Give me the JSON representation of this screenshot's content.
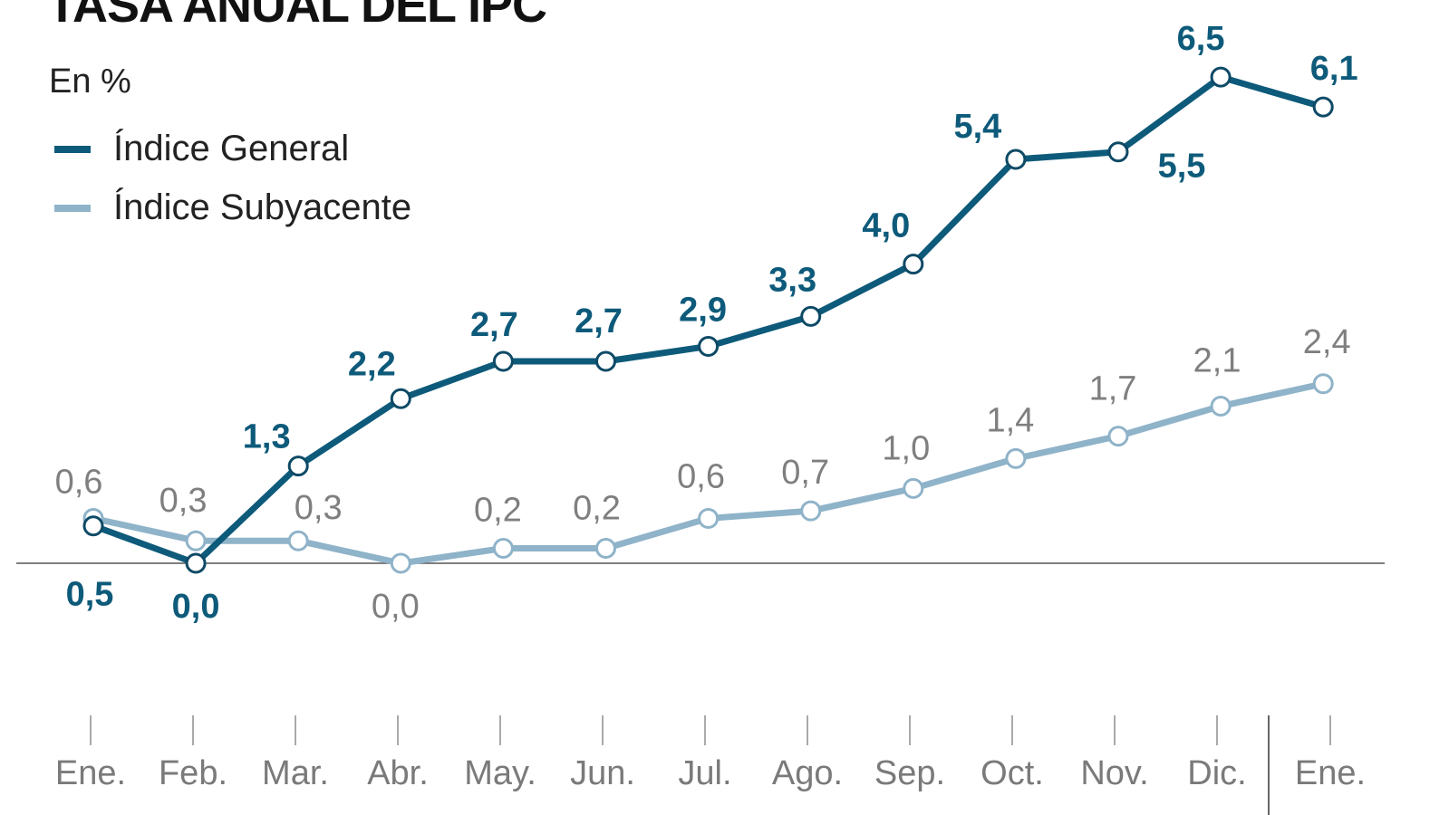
{
  "chart_data": {
    "type": "line",
    "title": "TASA ANUAL DEL IPC",
    "subtitle": "En %",
    "xlabel": "",
    "ylabel": "",
    "categories": [
      "Ene.",
      "Feb.",
      "Mar.",
      "Abr.",
      "May.",
      "Jun.",
      "Jul.",
      "Ago.",
      "Sep.",
      "Oct.",
      "Nov.",
      "Dic.",
      "Ene."
    ],
    "ylim": [
      -1.8,
      7.6
    ],
    "grid": false,
    "legend_position": "top-left",
    "series": [
      {
        "name": "Índice General",
        "color": "#0e5a7a",
        "values": [
          0.5,
          0.0,
          1.3,
          2.2,
          2.7,
          2.7,
          2.9,
          3.3,
          4.0,
          5.4,
          5.5,
          6.5,
          6.1
        ],
        "labels": [
          "0,5",
          "0,0",
          "1,3",
          "2,2",
          "2,7",
          "2,7",
          "2,9",
          "3,3",
          "4,0",
          "5,4",
          "5,5",
          "6,5",
          "6,1"
        ],
        "label_side": [
          "below",
          "below",
          "above",
          "above",
          "above",
          "above",
          "above",
          "above",
          "above",
          "above",
          "below",
          "above",
          "above"
        ]
      },
      {
        "name": "Índice Subyacente",
        "color": "#8fb3c9",
        "values": [
          0.6,
          0.3,
          0.3,
          0.0,
          0.2,
          0.2,
          0.6,
          0.7,
          1.0,
          1.4,
          1.7,
          2.1,
          2.4
        ],
        "labels": [
          "0,6",
          "0,3",
          "0,3",
          "0,0",
          "0,2",
          "0,2",
          "0,6",
          "0,7",
          "1,0",
          "1,4",
          "1,7",
          "2,1",
          "2,4"
        ],
        "label_side": [
          "above",
          "above",
          "above",
          "below",
          "above",
          "above",
          "above",
          "above",
          "above",
          "above",
          "above",
          "above",
          "above"
        ]
      }
    ],
    "baseline": 0,
    "year_divider_after": "Dic."
  }
}
